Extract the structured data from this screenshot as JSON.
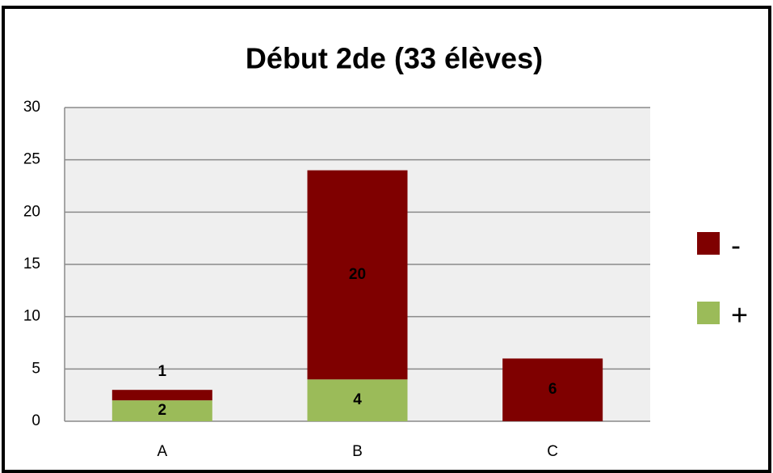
{
  "chart_data": {
    "type": "stacked_bar",
    "title": "Début 2de (33 élèves)",
    "categories": [
      "A",
      "B",
      "C"
    ],
    "series": [
      {
        "name": "+",
        "color": "#9bbb59",
        "values": [
          2,
          4,
          0
        ]
      },
      {
        "name": "-",
        "color": "#7f0000",
        "values": [
          1,
          20,
          6
        ]
      }
    ],
    "ylim": [
      0,
      30
    ],
    "yticks": [
      0,
      5,
      10,
      15,
      20,
      25,
      30
    ],
    "grid": true,
    "legend": "right"
  }
}
